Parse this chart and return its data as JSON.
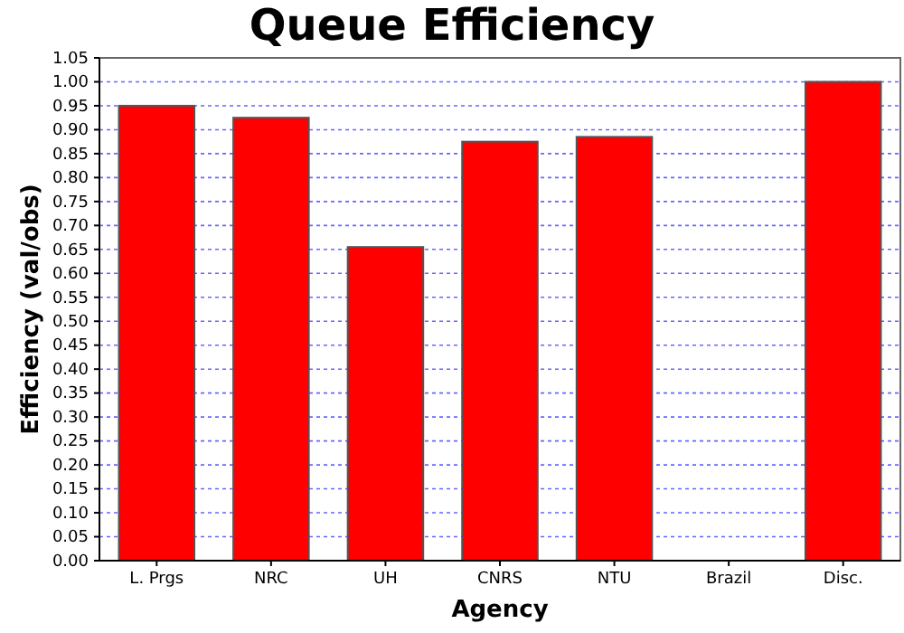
{
  "chart_data": {
    "type": "bar",
    "title": "Queue Efficiency",
    "xlabel": "Agency",
    "ylabel": "Efficiency (val/obs)",
    "categories": [
      "L. Prgs",
      "NRC",
      "UH",
      "CNRS",
      "NTU",
      "Brazil",
      "Disc."
    ],
    "values": [
      0.95,
      0.925,
      0.655,
      0.875,
      0.885,
      0,
      1.0
    ],
    "color": "#ff0000",
    "ylim": [
      0,
      1.05
    ],
    "yticks": [
      {
        "value": 0,
        "label": "0.00"
      },
      {
        "value": 0.05,
        "label": "0.05"
      },
      {
        "value": 0.1,
        "label": "0.10"
      },
      {
        "value": 0.15,
        "label": "0.15"
      },
      {
        "value": 0.2,
        "label": "0.20"
      },
      {
        "value": 0.25,
        "label": "0.25"
      },
      {
        "value": 0.3,
        "label": "0.30"
      },
      {
        "value": 0.35,
        "label": "0.35"
      },
      {
        "value": 0.4,
        "label": "0.40"
      },
      {
        "value": 0.45,
        "label": "0.45"
      },
      {
        "value": 0.5,
        "label": "0.50"
      },
      {
        "value": 0.55,
        "label": "0.55"
      },
      {
        "value": 0.6,
        "label": "0.60"
      },
      {
        "value": 0.65,
        "label": "0.65"
      },
      {
        "value": 0.7,
        "label": "0.70"
      },
      {
        "value": 0.75,
        "label": "0.75"
      },
      {
        "value": 0.8,
        "label": "0.80"
      },
      {
        "value": 0.85,
        "label": "0.85"
      },
      {
        "value": 0.9,
        "label": "0.90"
      },
      {
        "value": 0.95,
        "label": "0.95"
      },
      {
        "value": 1.0,
        "label": "1.00"
      },
      {
        "value": 1.05,
        "label": "1.05"
      }
    ],
    "grid": "y"
  }
}
